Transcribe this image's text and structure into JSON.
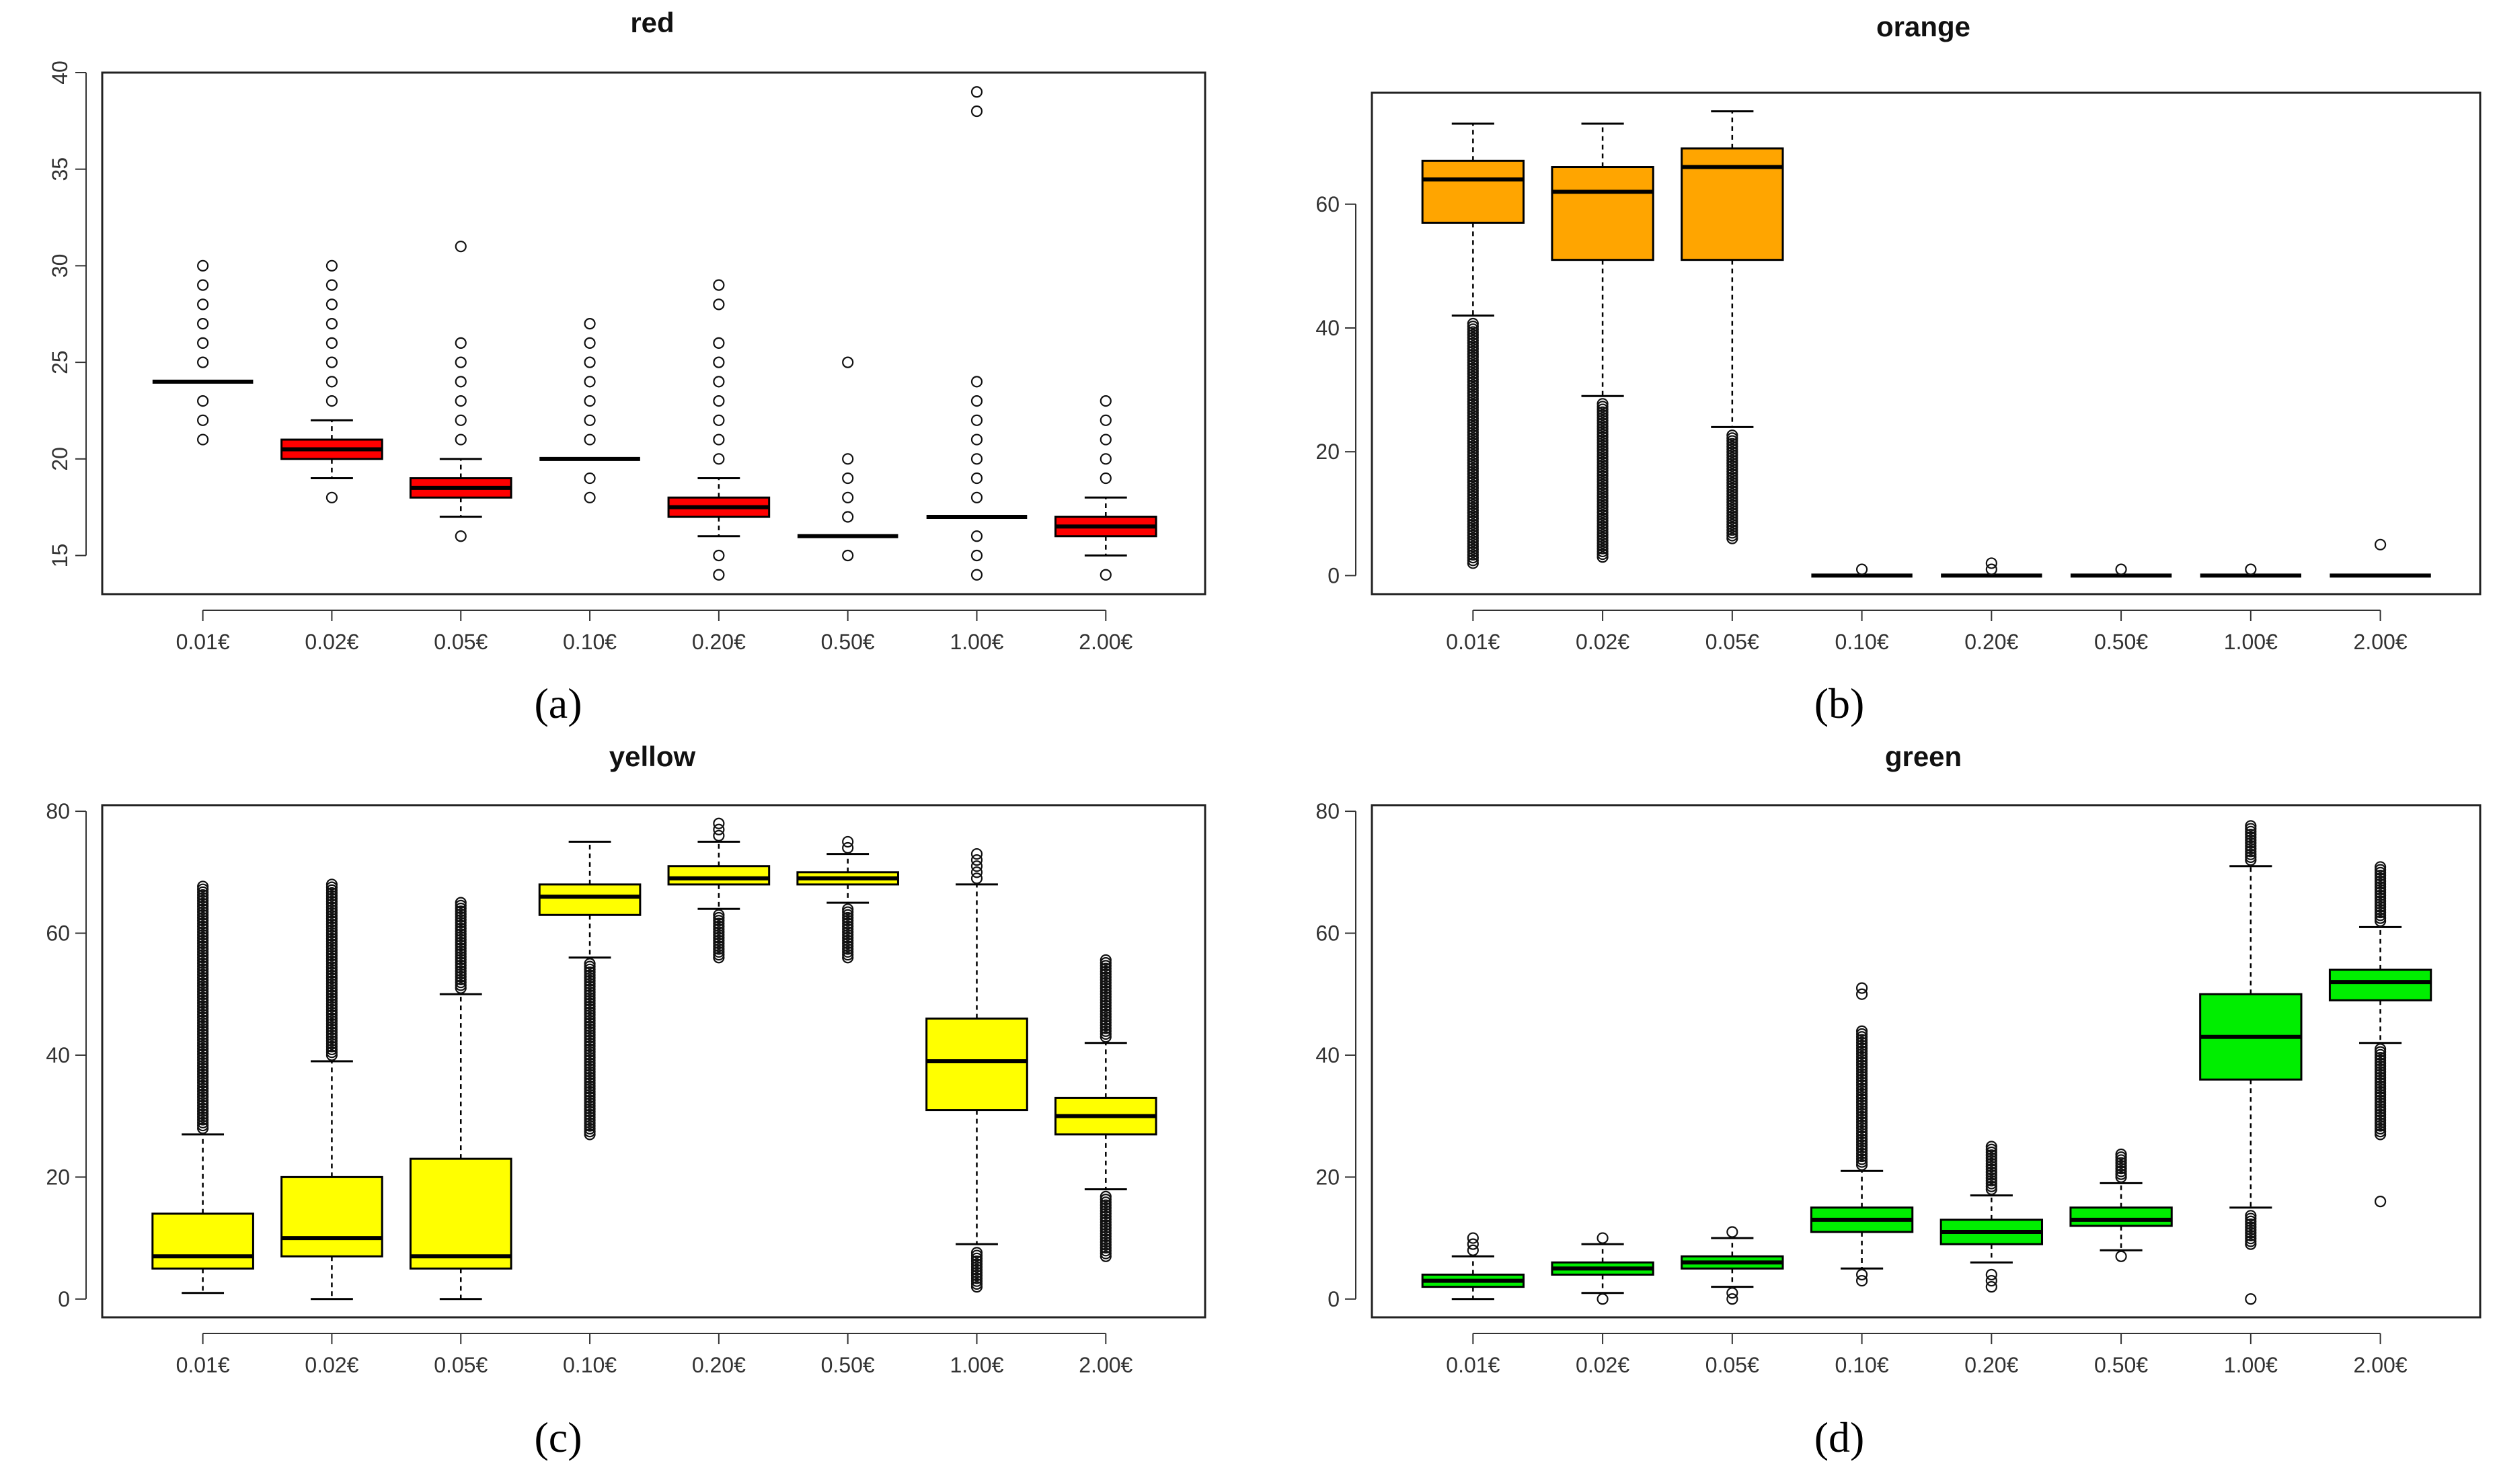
{
  "figure": {
    "panel_labels": [
      "(a)",
      "(b)",
      "(c)",
      "(d)"
    ]
  },
  "chart_data": [
    {
      "type": "box",
      "title": "red",
      "color": "#ff0000",
      "categories": [
        "0.01€",
        "0.02€",
        "0.05€",
        "0.10€",
        "0.20€",
        "0.50€",
        "1.00€",
        "2.00€"
      ],
      "ylim": [
        13,
        40
      ],
      "yticks": [
        15,
        20,
        25,
        30,
        35,
        40
      ],
      "ytick_labels": [
        "15",
        "20",
        "25",
        "30",
        "35",
        "40"
      ],
      "ytick_orientation": "vertical",
      "boxes": [
        {
          "q1": 24,
          "median": 24,
          "q3": 24,
          "whisker_low": 24,
          "whisker_high": 24,
          "outliers": [
            21,
            22,
            23,
            25,
            26,
            27,
            28,
            29,
            30
          ]
        },
        {
          "q1": 20,
          "median": 20.5,
          "q3": 21,
          "whisker_low": 19,
          "whisker_high": 22,
          "outliers": [
            18,
            23,
            24,
            25,
            26,
            27,
            28,
            29,
            30
          ]
        },
        {
          "q1": 18,
          "median": 18.5,
          "q3": 19,
          "whisker_low": 17,
          "whisker_high": 20,
          "outliers": [
            16,
            21,
            22,
            23,
            24,
            25,
            26,
            31
          ]
        },
        {
          "q1": 20,
          "median": 20,
          "q3": 20,
          "whisker_low": 20,
          "whisker_high": 20,
          "outliers": [
            18,
            19,
            21,
            22,
            23,
            24,
            25,
            26,
            27
          ]
        },
        {
          "q1": 17,
          "median": 17.5,
          "q3": 18,
          "whisker_low": 16,
          "whisker_high": 19,
          "outliers": [
            14,
            15,
            20,
            21,
            22,
            23,
            24,
            25,
            26,
            28,
            29
          ]
        },
        {
          "q1": 16,
          "median": 16,
          "q3": 16,
          "whisker_low": 16,
          "whisker_high": 16,
          "outliers": [
            15,
            17,
            18,
            19,
            20,
            25
          ]
        },
        {
          "q1": 17,
          "median": 17,
          "q3": 17,
          "whisker_low": 17,
          "whisker_high": 17,
          "outliers": [
            14,
            15,
            16,
            18,
            19,
            20,
            21,
            22,
            23,
            24,
            38,
            39
          ]
        },
        {
          "q1": 16,
          "median": 16.5,
          "q3": 17,
          "whisker_low": 15,
          "whisker_high": 18,
          "outliers": [
            14,
            19,
            20,
            21,
            22,
            23
          ]
        }
      ]
    },
    {
      "type": "box",
      "title": "orange",
      "color": "#ffa500",
      "categories": [
        "0.01€",
        "0.02€",
        "0.05€",
        "0.10€",
        "0.20€",
        "0.50€",
        "1.00€",
        "2.00€"
      ],
      "ylim": [
        -3,
        78
      ],
      "yticks": [
        0,
        20,
        40,
        60
      ],
      "ytick_labels": [
        "0",
        "20",
        "40",
        "60"
      ],
      "ytick_orientation": "horizontal",
      "boxes": [
        {
          "q1": 57,
          "median": 64,
          "q3": 67,
          "whisker_low": 42,
          "whisker_high": 73,
          "outlier_range": [
            2,
            41
          ]
        },
        {
          "q1": 51,
          "median": 62,
          "q3": 66,
          "whisker_low": 29,
          "whisker_high": 73,
          "outlier_range": [
            3,
            28
          ]
        },
        {
          "q1": 51,
          "median": 66,
          "q3": 69,
          "whisker_low": 24,
          "whisker_high": 75,
          "outlier_range": [
            6,
            23
          ]
        },
        {
          "q1": 0,
          "median": 0,
          "q3": 0,
          "whisker_low": 0,
          "whisker_high": 0,
          "outliers": [
            1
          ]
        },
        {
          "q1": 0,
          "median": 0,
          "q3": 0,
          "whisker_low": 0,
          "whisker_high": 0,
          "outliers": [
            1,
            2
          ]
        },
        {
          "q1": 0,
          "median": 0,
          "q3": 0,
          "whisker_low": 0,
          "whisker_high": 0,
          "outliers": [
            1
          ]
        },
        {
          "q1": 0,
          "median": 0,
          "q3": 0,
          "whisker_low": 0,
          "whisker_high": 0,
          "outliers": [
            1
          ]
        },
        {
          "q1": 0,
          "median": 0,
          "q3": 0,
          "whisker_low": 0,
          "whisker_high": 0,
          "outliers": [
            5
          ]
        }
      ]
    },
    {
      "type": "box",
      "title": "yellow",
      "color": "#ffff00",
      "categories": [
        "0.01€",
        "0.02€",
        "0.05€",
        "0.10€",
        "0.20€",
        "0.50€",
        "1.00€",
        "2.00€"
      ],
      "ylim": [
        -3,
        81
      ],
      "yticks": [
        0,
        20,
        40,
        60,
        80
      ],
      "ytick_labels": [
        "0",
        "20",
        "40",
        "60",
        "80"
      ],
      "ytick_orientation": "horizontal",
      "boxes": [
        {
          "q1": 5,
          "median": 7,
          "q3": 14,
          "whisker_low": 1,
          "whisker_high": 27,
          "outlier_range": [
            28,
            68
          ]
        },
        {
          "q1": 7,
          "median": 10,
          "q3": 20,
          "whisker_low": 0,
          "whisker_high": 39,
          "outlier_range": [
            40,
            68
          ]
        },
        {
          "q1": 5,
          "median": 7,
          "q3": 23,
          "whisker_low": 0,
          "whisker_high": 50,
          "outlier_range": [
            51,
            65
          ]
        },
        {
          "q1": 63,
          "median": 66,
          "q3": 68,
          "whisker_low": 56,
          "whisker_high": 75,
          "outlier_range": [
            27,
            55
          ]
        },
        {
          "q1": 68,
          "median": 69,
          "q3": 71,
          "whisker_low": 64,
          "whisker_high": 75,
          "outlier_range": [
            56,
            63
          ],
          "outliers": [
            76,
            77,
            78
          ]
        },
        {
          "q1": 68,
          "median": 69,
          "q3": 70,
          "whisker_low": 65,
          "whisker_high": 73,
          "outlier_range": [
            56,
            64
          ],
          "outliers": [
            74,
            75
          ]
        },
        {
          "q1": 31,
          "median": 39,
          "q3": 46,
          "whisker_low": 9,
          "whisker_high": 68,
          "outlier_range": [
            2,
            8
          ],
          "outliers": [
            69,
            70,
            71,
            72,
            73
          ]
        },
        {
          "q1": 27,
          "median": 30,
          "q3": 33,
          "whisker_low": 18,
          "whisker_high": 42,
          "outlier_range": [
            7,
            17
          ],
          "outlier_range_high": [
            43,
            56
          ]
        }
      ]
    },
    {
      "type": "box",
      "title": "green",
      "color": "#00ee00",
      "categories": [
        "0.01€",
        "0.02€",
        "0.05€",
        "0.10€",
        "0.20€",
        "0.50€",
        "1.00€",
        "2.00€"
      ],
      "ylim": [
        -3,
        81
      ],
      "yticks": [
        0,
        20,
        40,
        60,
        80
      ],
      "ytick_labels": [
        "0",
        "20",
        "40",
        "60",
        "80"
      ],
      "ytick_orientation": "horizontal",
      "boxes": [
        {
          "q1": 2,
          "median": 3,
          "q3": 4,
          "whisker_low": 0,
          "whisker_high": 7,
          "outliers": [
            8,
            9,
            10
          ]
        },
        {
          "q1": 4,
          "median": 5,
          "q3": 6,
          "whisker_low": 1,
          "whisker_high": 9,
          "outliers": [
            0,
            10
          ]
        },
        {
          "q1": 5,
          "median": 6,
          "q3": 7,
          "whisker_low": 2,
          "whisker_high": 10,
          "outliers": [
            0,
            1,
            11
          ]
        },
        {
          "q1": 11,
          "median": 13,
          "q3": 15,
          "whisker_low": 5,
          "whisker_high": 21,
          "outliers": [
            3,
            4
          ],
          "outlier_range_high": [
            22,
            44
          ],
          "outliers_high": [
            50,
            51
          ]
        },
        {
          "q1": 9,
          "median": 11,
          "q3": 13,
          "whisker_low": 6,
          "whisker_high": 17,
          "outliers": [
            2,
            3,
            4
          ],
          "outlier_range_high": [
            18,
            25
          ]
        },
        {
          "q1": 12,
          "median": 13,
          "q3": 15,
          "whisker_low": 8,
          "whisker_high": 19,
          "outliers": [
            7
          ],
          "outlier_range_high": [
            20,
            24
          ]
        },
        {
          "q1": 36,
          "median": 43,
          "q3": 50,
          "whisker_low": 15,
          "whisker_high": 71,
          "outliers": [
            0
          ],
          "outlier_range": [
            9,
            14
          ],
          "outlier_range_high": [
            72,
            78
          ]
        },
        {
          "q1": 49,
          "median": 52,
          "q3": 54,
          "whisker_low": 42,
          "whisker_high": 61,
          "outliers": [
            16
          ],
          "outlier_range": [
            27,
            41
          ],
          "outlier_range_high": [
            62,
            71
          ]
        }
      ]
    }
  ]
}
